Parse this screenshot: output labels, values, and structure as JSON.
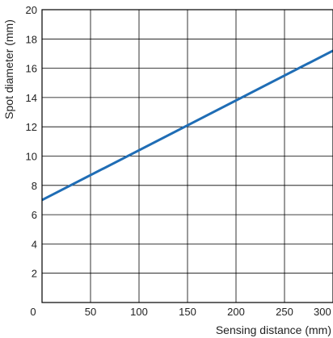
{
  "chart_data": {
    "type": "line",
    "xlabel": "Sensing distance (mm)",
    "ylabel": "Spot diameter (mm)",
    "xlim": [
      0,
      300
    ],
    "ylim": [
      0,
      20
    ],
    "x_ticks": [
      "0",
      "50",
      "100",
      "150",
      "200",
      "250",
      "300"
    ],
    "y_ticks": [
      "2",
      "4",
      "6",
      "8",
      "10",
      "12",
      "14",
      "16",
      "18",
      "20"
    ],
    "grid": true,
    "series": [
      {
        "color": "#1f6db5",
        "x": [
          0,
          300
        ],
        "y": [
          7.0,
          17.2
        ]
      }
    ]
  }
}
